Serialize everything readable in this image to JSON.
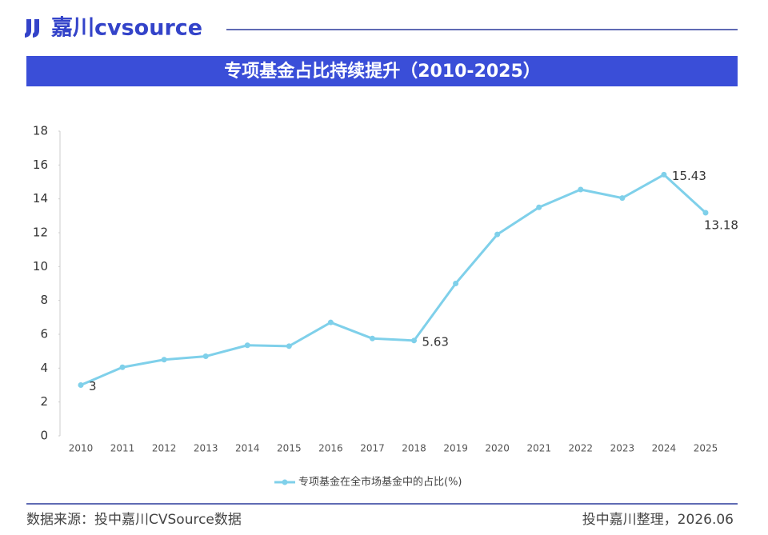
{
  "header": {
    "logo": "嘉川cvsource"
  },
  "chart_data": {
    "type": "line",
    "title": "专项基金占比持续提升（2010-2025）",
    "categories": [
      "2010",
      "2011",
      "2012",
      "2013",
      "2014",
      "2015",
      "2016",
      "2017",
      "2018",
      "2019",
      "2020",
      "2021",
      "2022",
      "2023",
      "2024",
      "2025"
    ],
    "series": [
      {
        "name": "专项基金在全市场基金中的占比(%)",
        "color": "#7fd0ea",
        "values": [
          3,
          4.05,
          4.5,
          4.7,
          5.35,
          5.3,
          6.7,
          5.75,
          5.63,
          9.0,
          11.9,
          13.5,
          14.55,
          14.05,
          15.43,
          13.18
        ],
        "value_labels": [
          "3",
          null,
          null,
          null,
          null,
          null,
          null,
          null,
          "5.63",
          null,
          null,
          null,
          null,
          null,
          "15.43",
          "13.18"
        ]
      }
    ],
    "ylim": [
      0,
      18
    ],
    "yticks": [
      0,
      2,
      4,
      6,
      8,
      10,
      12,
      14,
      16,
      18
    ],
    "grid": false,
    "legend": "bottom"
  },
  "footer": {
    "source": "数据来源：投中嘉川CVSource数据",
    "note": "投中嘉川整理，2026.06"
  }
}
